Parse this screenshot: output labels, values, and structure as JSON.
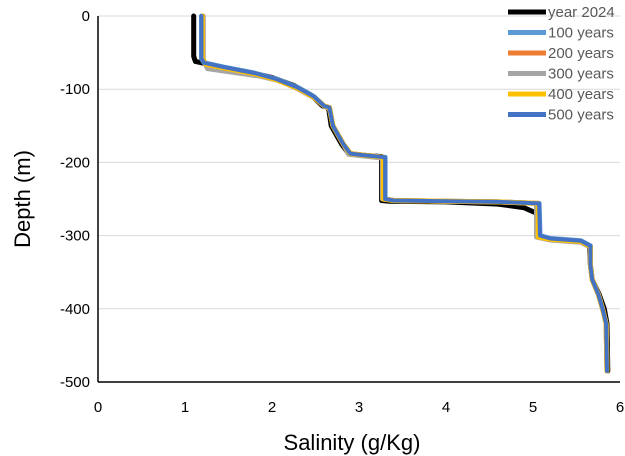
{
  "chart_data": {
    "type": "line",
    "title": "",
    "xlabel": "Salinity (g/Kg)",
    "ylabel": "Depth (m)",
    "xlim": [
      0,
      6
    ],
    "ylim": [
      -500,
      0
    ],
    "x_ticks": [
      "0",
      "1",
      "2",
      "3",
      "4",
      "5",
      "6"
    ],
    "y_ticks": [
      "0",
      "-100",
      "-200",
      "-300",
      "-400",
      "-500"
    ],
    "grid": "horizontal",
    "legend_position": "top-right",
    "series": [
      {
        "name": "year 2024",
        "color": "#000000",
        "points": [
          [
            1.1,
            0
          ],
          [
            1.1,
            -55
          ],
          [
            1.12,
            -62
          ],
          [
            1.35,
            -68
          ],
          [
            1.7,
            -76
          ],
          [
            2.0,
            -84
          ],
          [
            2.25,
            -95
          ],
          [
            2.45,
            -108
          ],
          [
            2.58,
            -123
          ],
          [
            2.65,
            -125
          ],
          [
            2.68,
            -150
          ],
          [
            2.8,
            -175
          ],
          [
            2.88,
            -188
          ],
          [
            3.0,
            -190
          ],
          [
            3.26,
            -192
          ],
          [
            3.26,
            -252
          ],
          [
            3.35,
            -253
          ],
          [
            4.0,
            -254
          ],
          [
            4.6,
            -257
          ],
          [
            4.9,
            -262
          ],
          [
            5.05,
            -270
          ],
          [
            5.07,
            -300
          ],
          [
            5.2,
            -305
          ],
          [
            5.55,
            -308
          ],
          [
            5.65,
            -315
          ],
          [
            5.66,
            -340
          ],
          [
            5.68,
            -360
          ],
          [
            5.76,
            -380
          ],
          [
            5.82,
            -400
          ],
          [
            5.85,
            -420
          ],
          [
            5.86,
            -485
          ]
        ]
      },
      {
        "name": "100 years",
        "color": "#5B9BD5",
        "points": [
          [
            1.19,
            0
          ],
          [
            1.19,
            -58
          ],
          [
            1.22,
            -64
          ],
          [
            1.45,
            -70
          ],
          [
            1.8,
            -78
          ],
          [
            2.05,
            -86
          ],
          [
            2.3,
            -98
          ],
          [
            2.48,
            -110
          ],
          [
            2.6,
            -123
          ],
          [
            2.66,
            -125
          ],
          [
            2.7,
            -150
          ],
          [
            2.82,
            -175
          ],
          [
            2.9,
            -188
          ],
          [
            3.05,
            -190
          ],
          [
            3.3,
            -193
          ],
          [
            3.3,
            -250
          ],
          [
            3.4,
            -252
          ],
          [
            4.0,
            -253
          ],
          [
            4.6,
            -254
          ],
          [
            5.07,
            -256
          ],
          [
            5.08,
            -300
          ],
          [
            5.2,
            -304
          ],
          [
            5.55,
            -307
          ],
          [
            5.66,
            -314
          ],
          [
            5.66,
            -340
          ],
          [
            5.68,
            -360
          ],
          [
            5.75,
            -380
          ],
          [
            5.8,
            -400
          ],
          [
            5.84,
            -420
          ],
          [
            5.85,
            -485
          ]
        ]
      },
      {
        "name": "200 years",
        "color": "#ED7D31",
        "points": [
          [
            1.2,
            0
          ],
          [
            1.2,
            -58
          ],
          [
            1.24,
            -66
          ],
          [
            1.45,
            -71
          ],
          [
            1.8,
            -79
          ],
          [
            2.05,
            -87
          ],
          [
            2.3,
            -99
          ],
          [
            2.48,
            -111
          ],
          [
            2.6,
            -123
          ],
          [
            2.66,
            -125
          ],
          [
            2.7,
            -150
          ],
          [
            2.82,
            -175
          ],
          [
            2.9,
            -188
          ],
          [
            3.05,
            -190
          ],
          [
            3.28,
            -193
          ],
          [
            3.28,
            -250
          ],
          [
            3.4,
            -252
          ],
          [
            4.0,
            -253
          ],
          [
            4.6,
            -254
          ],
          [
            5.06,
            -256
          ],
          [
            5.06,
            -302
          ],
          [
            5.2,
            -305
          ],
          [
            5.55,
            -308
          ],
          [
            5.66,
            -315
          ],
          [
            5.66,
            -340
          ],
          [
            5.68,
            -360
          ],
          [
            5.75,
            -380
          ],
          [
            5.8,
            -400
          ],
          [
            5.84,
            -420
          ],
          [
            5.85,
            -485
          ]
        ]
      },
      {
        "name": "300 years",
        "color": "#A5A5A5",
        "points": [
          [
            1.21,
            0
          ],
          [
            1.21,
            -60
          ],
          [
            1.26,
            -72
          ],
          [
            1.5,
            -76
          ],
          [
            1.85,
            -82
          ],
          [
            2.1,
            -89
          ],
          [
            2.32,
            -101
          ],
          [
            2.5,
            -113
          ],
          [
            2.6,
            -123
          ],
          [
            2.66,
            -126
          ],
          [
            2.7,
            -150
          ],
          [
            2.82,
            -175
          ],
          [
            2.88,
            -189
          ],
          [
            3.03,
            -191
          ],
          [
            3.27,
            -194
          ],
          [
            3.27,
            -250
          ],
          [
            3.4,
            -252
          ],
          [
            4.0,
            -253
          ],
          [
            4.6,
            -254
          ],
          [
            5.04,
            -256
          ],
          [
            5.04,
            -302
          ],
          [
            5.2,
            -306
          ],
          [
            5.55,
            -309
          ],
          [
            5.66,
            -316
          ],
          [
            5.66,
            -340
          ],
          [
            5.68,
            -360
          ],
          [
            5.75,
            -380
          ],
          [
            5.8,
            -400
          ],
          [
            5.84,
            -420
          ],
          [
            5.85,
            -485
          ]
        ]
      },
      {
        "name": "400 years",
        "color": "#FFC000",
        "points": [
          [
            1.2,
            0
          ],
          [
            1.2,
            -58
          ],
          [
            1.24,
            -66
          ],
          [
            1.45,
            -71
          ],
          [
            1.8,
            -79
          ],
          [
            2.05,
            -87
          ],
          [
            2.3,
            -99
          ],
          [
            2.48,
            -111
          ],
          [
            2.6,
            -123
          ],
          [
            2.66,
            -125
          ],
          [
            2.7,
            -150
          ],
          [
            2.82,
            -175
          ],
          [
            2.9,
            -188
          ],
          [
            3.05,
            -190
          ],
          [
            3.28,
            -193
          ],
          [
            3.28,
            -250
          ],
          [
            3.4,
            -252
          ],
          [
            4.0,
            -253
          ],
          [
            4.6,
            -254
          ],
          [
            5.06,
            -256
          ],
          [
            5.06,
            -302
          ],
          [
            5.2,
            -305
          ],
          [
            5.55,
            -308
          ],
          [
            5.66,
            -315
          ],
          [
            5.66,
            -340
          ],
          [
            5.68,
            -360
          ],
          [
            5.75,
            -380
          ],
          [
            5.8,
            -400
          ],
          [
            5.84,
            -420
          ],
          [
            5.85,
            -485
          ]
        ]
      },
      {
        "name": "500 years",
        "color": "#4472C4",
        "points": [
          [
            1.19,
            0
          ],
          [
            1.19,
            -58
          ],
          [
            1.22,
            -64
          ],
          [
            1.45,
            -70
          ],
          [
            1.8,
            -78
          ],
          [
            2.05,
            -86
          ],
          [
            2.3,
            -98
          ],
          [
            2.48,
            -110
          ],
          [
            2.6,
            -123
          ],
          [
            2.66,
            -125
          ],
          [
            2.7,
            -150
          ],
          [
            2.82,
            -175
          ],
          [
            2.9,
            -188
          ],
          [
            3.05,
            -190
          ],
          [
            3.3,
            -193
          ],
          [
            3.3,
            -250
          ],
          [
            3.4,
            -252
          ],
          [
            4.0,
            -253
          ],
          [
            4.6,
            -254
          ],
          [
            5.07,
            -256
          ],
          [
            5.08,
            -300
          ],
          [
            5.2,
            -304
          ],
          [
            5.55,
            -307
          ],
          [
            5.66,
            -314
          ],
          [
            5.66,
            -340
          ],
          [
            5.68,
            -360
          ],
          [
            5.75,
            -380
          ],
          [
            5.8,
            -400
          ],
          [
            5.84,
            -420
          ],
          [
            5.85,
            -485
          ]
        ]
      }
    ]
  }
}
